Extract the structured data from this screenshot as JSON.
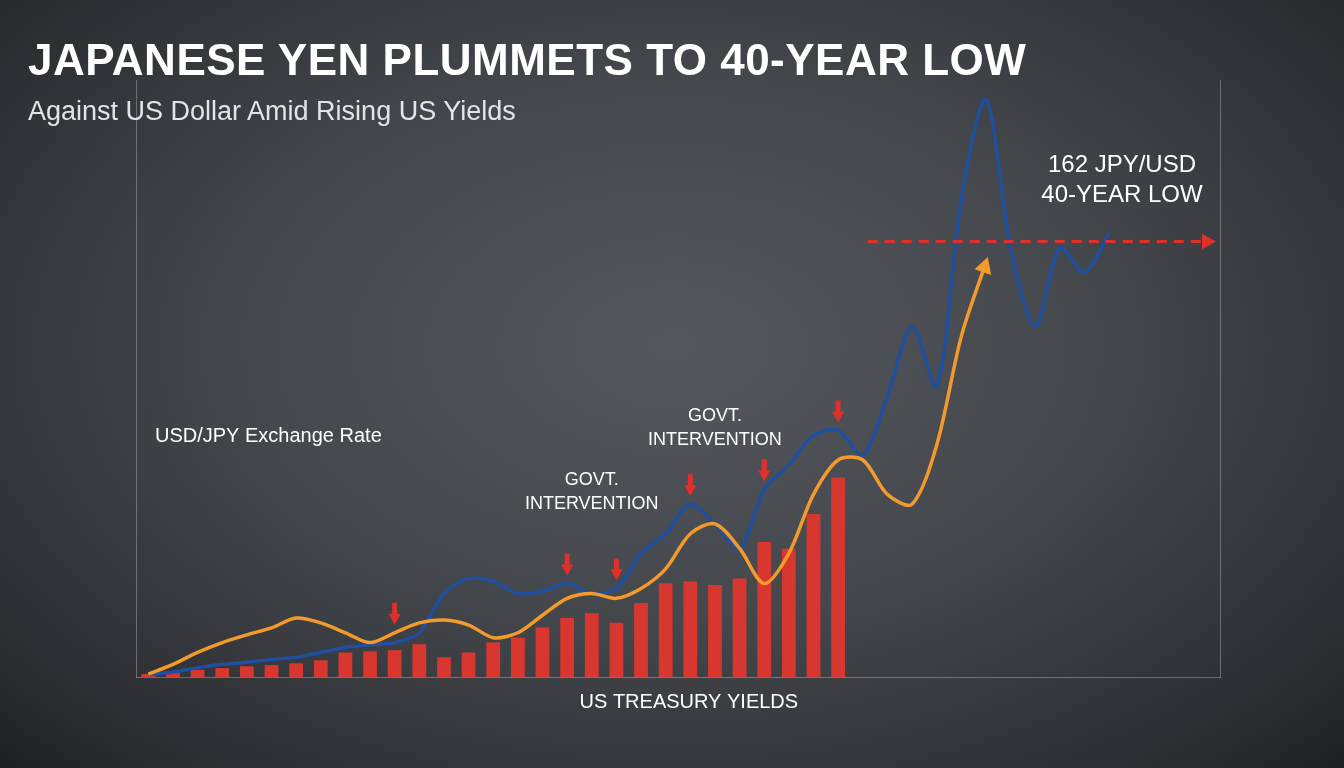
{
  "chart_data": {
    "type": "bar",
    "title": "JAPANESE YEN PLUMMETS TO 40-YEAR LOW",
    "subtitle": "Against US Dollar Amid Rising US Yields",
    "categories": [
      null,
      null,
      null,
      null,
      null,
      null,
      null,
      null,
      null,
      null,
      null,
      null,
      null,
      null,
      null,
      null,
      null,
      null,
      null,
      null,
      null,
      null,
      null,
      null,
      null,
      null,
      null,
      null,
      null,
      null,
      null,
      null,
      null,
      null,
      null,
      null,
      null,
      null,
      null,
      null,
      null,
      null,
      null,
      null
    ],
    "series": [
      {
        "name": "US TREASURY YIELDS",
        "type": "bar",
        "axis": "y2",
        "color": "#d7372f",
        "values": [
          0.05,
          0.08,
          0.12,
          0.15,
          0.18,
          0.2,
          0.23,
          0.28,
          0.41,
          0.43,
          0.45,
          0.55,
          0.33,
          0.41,
          0.58,
          0.66,
          0.83,
          0.99,
          1.07,
          0.91,
          1.24,
          1.57,
          1.6,
          1.54,
          1.65,
          2.26,
          2.15,
          2.73,
          3.34,
          null,
          null,
          null,
          null,
          null,
          null,
          null,
          null,
          null,
          null,
          null,
          null,
          null,
          null,
          null
        ]
      },
      {
        "type": "line",
        "color": "#f39a2c",
        "line_style": "solid",
        "marker": "arrow",
        "values": [
          100.4,
          101.8,
          103.5,
          104.9,
          106,
          107,
          108.4,
          107.7,
          106.3,
          104.9,
          106.3,
          107.7,
          108.1,
          107.4,
          105.6,
          106.3,
          108.8,
          111.2,
          111.9,
          111.2,
          112.6,
          115.4,
          120.4,
          121.8,
          118.3,
          113.3,
          117.6,
          126,
          130.9,
          130.9,
          126,
          124.6,
          133,
          148.5,
          159,
          null,
          null,
          null,
          null,
          null,
          null,
          null,
          null,
          null
        ]
      },
      {
        "name": "USD/JPY Exchange Rate",
        "type": "line",
        "color": "#1f4f9e",
        "line_style": "solid",
        "values": [
          100.3,
          100.7,
          101.3,
          101.8,
          102.1,
          102.5,
          102.8,
          103.5,
          104.2,
          104.6,
          104.9,
          106.3,
          111.9,
          114,
          113.6,
          111.9,
          112.2,
          113.3,
          111.9,
          112.6,
          117.6,
          120.4,
          124.6,
          121.8,
          118.3,
          126.7,
          130.2,
          134.4,
          135.1,
          131.6,
          140,
          149.9,
          141.4,
          168.1,
          182.2,
          161.1,
          149.9,
          161.1,
          157.6,
          163.2,
          null,
          null,
          null,
          null
        ]
      }
    ],
    "ylim": [
      100,
      185
    ],
    "yticks": [
      100,
      185
    ],
    "y2lim": [
      0,
      10
    ],
    "y2ticks": [
      0,
      10
    ],
    "grid": false,
    "tick_labels": false,
    "reference_line": {
      "value": 162,
      "texts": [
        "162 JPY/USD",
        "40-YEAR LOW"
      ],
      "color": "#e0302b",
      "line_style": "dashed"
    },
    "intervention_arrows": [
      10,
      17,
      19,
      22,
      25,
      28
    ],
    "annotations": [
      {
        "text": "GOVT. INTERVENTION",
        "index": 18
      },
      {
        "text": "GOVT. INTERVENTION",
        "index": 23
      }
    ]
  }
}
